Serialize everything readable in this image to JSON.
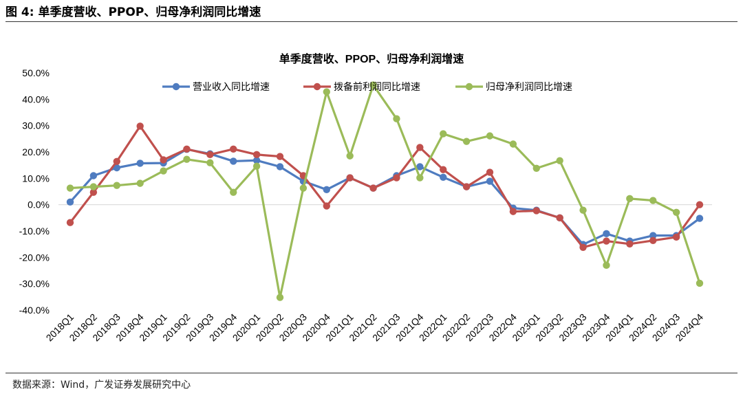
{
  "header": {
    "figure_title": "图 4:  单季度营收、PPOP、归母净利润同比增速"
  },
  "footer": {
    "source": "数据来源：Wind，广发证券发展研究中心"
  },
  "chart_data": {
    "type": "line",
    "title": "单季度营收、PPOP、归母净利润增速",
    "xlabel": "",
    "ylabel": "",
    "ylim": [
      -40,
      50
    ],
    "yticks": [
      "50.0%",
      "40.0%",
      "30.0%",
      "20.0%",
      "10.0%",
      "0.0%",
      "-10.0%",
      "-20.0%",
      "-30.0%",
      "-40.0%"
    ],
    "grid": false,
    "zero_line": true,
    "legend_position": "top",
    "categories": [
      "2018Q1",
      "2018Q2",
      "2018Q3",
      "2018Q4",
      "2019Q1",
      "2019Q2",
      "2019Q3",
      "2019Q4",
      "2020Q1",
      "2020Q2",
      "2020Q3",
      "2020Q4",
      "2021Q1",
      "2021Q2",
      "2021Q3",
      "2021Q4",
      "2022Q1",
      "2022Q2",
      "2022Q3",
      "2022Q4",
      "2023Q1",
      "2023Q2",
      "2023Q3",
      "2023Q4",
      "2024Q1",
      "2024Q2",
      "2024Q3",
      "2024Q4"
    ],
    "series": [
      {
        "name": "营业收入同比增速",
        "color": "#4F7CC0",
        "values": [
          1.0,
          11.0,
          14.0,
          15.7,
          15.8,
          21.0,
          19.3,
          16.5,
          16.8,
          14.4,
          8.9,
          5.7,
          10.2,
          6.3,
          11.0,
          14.4,
          10.4,
          6.8,
          8.9,
          -1.3,
          -2.1,
          -5.0,
          -15.1,
          -11.0,
          -13.8,
          -11.7,
          -11.7,
          -5.2
        ]
      },
      {
        "name": "拨备前利润同比增速",
        "color": "#C0504D",
        "values": [
          -6.8,
          4.7,
          16.4,
          29.8,
          17.0,
          21.1,
          19.0,
          21.1,
          19.0,
          18.3,
          11.0,
          -0.5,
          10.2,
          6.3,
          10.2,
          21.7,
          13.3,
          6.8,
          12.3,
          -2.6,
          -2.3,
          -5.0,
          -16.2,
          -13.8,
          -14.9,
          -13.6,
          -12.3,
          0.0
        ]
      },
      {
        "name": "归母净利润同比增速",
        "color": "#9BBB59",
        "values": [
          6.3,
          6.8,
          7.3,
          8.1,
          12.8,
          17.2,
          15.9,
          4.7,
          14.6,
          -35.2,
          6.3,
          42.8,
          18.5,
          45.4,
          32.6,
          10.2,
          26.9,
          24.0,
          26.1,
          23.0,
          13.8,
          16.7,
          -2.1,
          -23.0,
          2.3,
          1.6,
          -2.9,
          -29.8
        ]
      }
    ]
  }
}
